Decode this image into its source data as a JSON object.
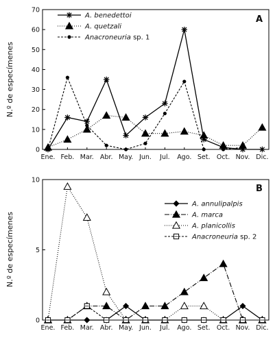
{
  "chart_data": [
    {
      "type": "line",
      "panel_label": "A",
      "ylabel": "N.º de especímenes",
      "categories": [
        "Ene.",
        "Feb.",
        "Mar.",
        "Abr.",
        "May.",
        "Jun.",
        "Jul.",
        "Ago.",
        "Set.",
        "Oct.",
        "Nov.",
        "Dic."
      ],
      "ylim": [
        0,
        70
      ],
      "yticks": [
        0,
        10,
        20,
        30,
        40,
        50,
        60,
        70
      ],
      "legend_position": "top-left",
      "series": [
        {
          "name": "A. benedettoi",
          "name_italic": "A. benedettoi",
          "name_rest": "",
          "marker": "star",
          "line": "solid",
          "values": [
            0,
            16,
            14,
            35,
            7,
            16,
            23,
            60,
            5,
            1,
            0,
            0
          ]
        },
        {
          "name": "A. quetzali",
          "name_italic": "A. quetzali",
          "name_rest": "",
          "marker": "triangle",
          "line": "dotted",
          "values": [
            1,
            5,
            10,
            17,
            16,
            8,
            8,
            9,
            7,
            2,
            2,
            11
          ]
        },
        {
          "name": "Anacroneuria sp. 1",
          "name_italic": "Anacroneuria",
          "name_rest": " sp. 1",
          "marker": "dot",
          "line": "dashed",
          "values": [
            0,
            36,
            12,
            2,
            0,
            3,
            18,
            34,
            0,
            0,
            1,
            null
          ]
        }
      ]
    },
    {
      "type": "line",
      "panel_label": "B",
      "ylabel": "N.º de especímenes",
      "categories": [
        "Ene.",
        "Feb.",
        "Mar.",
        "Abr.",
        "May.",
        "Jun.",
        "Jul.",
        "Ago.",
        "Set.",
        "Oct.",
        "Nov.",
        "Dic."
      ],
      "ylim": [
        0,
        10
      ],
      "yticks": [
        0,
        5,
        10
      ],
      "legend_position": "top-right",
      "series": [
        {
          "name": "A. annulipalpis",
          "name_italic": "A. annulipalpis",
          "name_rest": "",
          "marker": "diamond",
          "line": "solid",
          "values": [
            0,
            0,
            0,
            0,
            1,
            0,
            0,
            0,
            0,
            0,
            1,
            0
          ]
        },
        {
          "name": "A. marca",
          "name_italic": "A. marca",
          "name_rest": "",
          "marker": "triangle",
          "line": "dashdot",
          "values": [
            0,
            0,
            1,
            1,
            0,
            1,
            1,
            2,
            3,
            4,
            0,
            0
          ]
        },
        {
          "name": "A. planicollis",
          "name_italic": "A. planicollis",
          "name_rest": "",
          "marker": "triangle-open",
          "line": "dotted",
          "values": [
            0,
            9.5,
            7.3,
            2,
            0,
            0,
            0,
            1,
            1,
            0,
            0,
            0
          ]
        },
        {
          "name": "Anacroneuria sp. 2",
          "name_italic": "Anacroneuria",
          "name_rest": " sp. 2",
          "marker": "square-open",
          "line": "dashed",
          "values": [
            0,
            0,
            1,
            0,
            0,
            0,
            0,
            0,
            0,
            0,
            0,
            0
          ]
        }
      ]
    }
  ]
}
